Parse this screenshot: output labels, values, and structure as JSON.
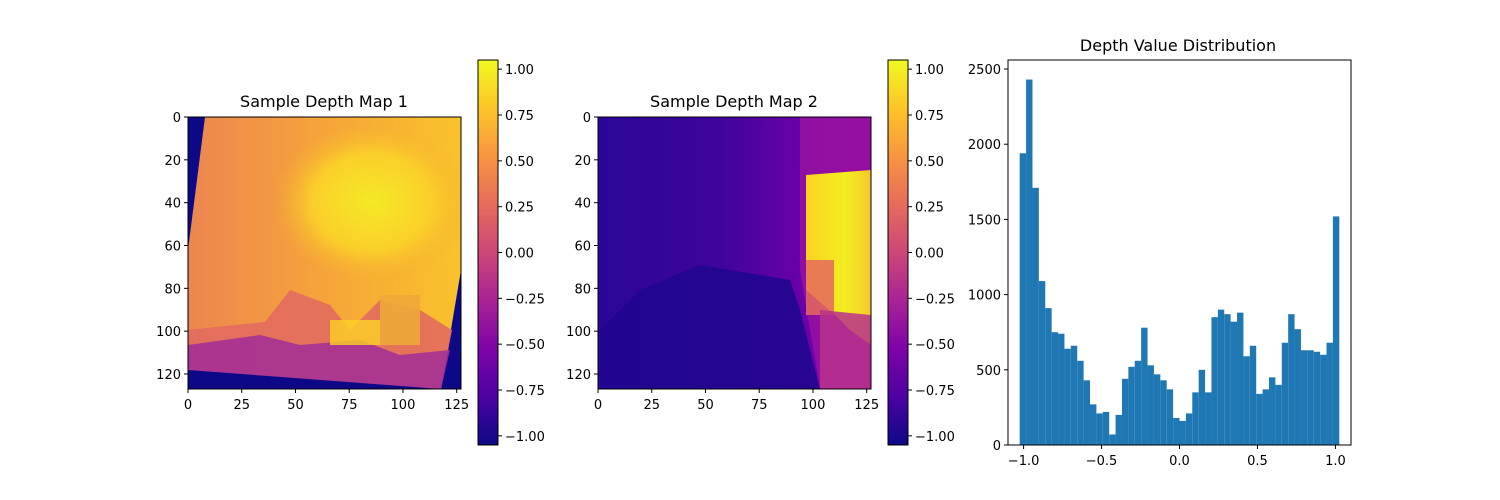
{
  "chart_data": [
    {
      "type": "heatmap",
      "title": "Sample Depth Map 1",
      "xticks": [
        "0",
        "25",
        "50",
        "75",
        "100",
        "125"
      ],
      "yticks": [
        "0",
        "20",
        "40",
        "60",
        "80",
        "100",
        "120"
      ],
      "xlim": [
        0,
        127
      ],
      "ylim": [
        127,
        0
      ],
      "colormap": "plasma",
      "colorbar": {
        "ticks": [
          "1.00",
          "0.75",
          "0.50",
          "0.25",
          "0.00",
          "−0.25",
          "−0.50",
          "−0.75",
          "−1.00"
        ],
        "range": [
          -1.05,
          1.05
        ]
      }
    },
    {
      "type": "heatmap",
      "title": "Sample Depth Map 2",
      "xticks": [
        "0",
        "25",
        "50",
        "75",
        "100",
        "125"
      ],
      "yticks": [
        "0",
        "20",
        "40",
        "60",
        "80",
        "100",
        "120"
      ],
      "xlim": [
        0,
        127
      ],
      "ylim": [
        127,
        0
      ],
      "colormap": "plasma",
      "colorbar": {
        "ticks": [
          "1.00",
          "0.75",
          "0.50",
          "0.25",
          "0.00",
          "−0.25",
          "−0.50",
          "−0.75",
          "−1.00"
        ],
        "range": [
          -1.05,
          1.05
        ]
      }
    },
    {
      "type": "bar",
      "title": "Depth Value Distribution",
      "xticks": [
        "−1.0",
        "−0.5",
        "0.0",
        "0.5",
        "1.0"
      ],
      "yticks": [
        "0",
        "500",
        "1000",
        "1500",
        "2000",
        "2500"
      ],
      "xlim": [
        -1.1,
        1.1
      ],
      "ylim": [
        0,
        2560
      ],
      "bin_start": -1.025,
      "bin_width": 0.041,
      "values": [
        1940,
        2430,
        1710,
        1090,
        910,
        750,
        740,
        640,
        660,
        560,
        430,
        270,
        210,
        220,
        70,
        200,
        440,
        520,
        560,
        780,
        530,
        470,
        430,
        370,
        180,
        160,
        210,
        350,
        500,
        350,
        850,
        900,
        870,
        820,
        880,
        590,
        660,
        340,
        370,
        450,
        400,
        680,
        870,
        770,
        630,
        630,
        620,
        600,
        680,
        1520
      ],
      "color": "#1f77b4"
    }
  ]
}
